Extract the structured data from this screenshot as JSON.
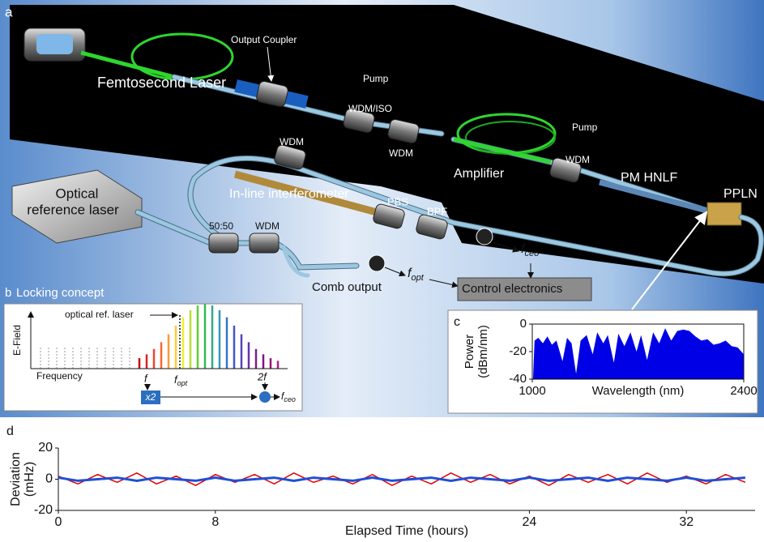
{
  "panel_a": {
    "letter": "a",
    "output_coupler": "Output Coupler",
    "femtosecond_laser": "Femtosecond Laser",
    "pump_1": "Pump",
    "wdm_iso": "WDM/ISO",
    "wdm_1": "WDM",
    "amplifier": "Amplifier",
    "pump_2": "Pump",
    "wdm_2": "WDM",
    "pm_hnlf": "PM HNLF",
    "ppln": "PPLN",
    "wdm_3": "WDM",
    "in_line_interferometer": "In-line interferometer",
    "pbs": "PBS",
    "bpf": "BPF",
    "optical_reference_laser": [
      "Optical",
      "reference laser"
    ],
    "splitter": "50:50",
    "wdm_4": "WDM",
    "comb_output": "Comb output",
    "control_electronics": "Control electronics",
    "f_opt": {
      "symbol": "f",
      "sub": "opt"
    },
    "f_ceo": {
      "symbol": "f",
      "sub": "ceo"
    }
  },
  "panel_b": {
    "letter": "b",
    "title": "Locking concept",
    "y_label": "E-Field",
    "x_label": "Frequency",
    "ref_label": "optical ref. laser",
    "f": "f",
    "f_opt": {
      "symbol": "f",
      "sub": "opt"
    },
    "two_f": "2f",
    "doubler": "x2",
    "f_ceo": {
      "symbol": "f",
      "sub": "ceo"
    }
  },
  "chart_data": [
    {
      "type": "area",
      "panel": "c",
      "ylabel": [
        "Power",
        "(dBm/nm)"
      ],
      "xlabel": "Wavelength (nm)",
      "x": [
        1005,
        1015,
        1040,
        1070,
        1100,
        1130,
        1160,
        1200,
        1230,
        1260,
        1290,
        1320,
        1360,
        1400,
        1430,
        1470,
        1500,
        1540,
        1570,
        1610,
        1650,
        1690,
        1720,
        1760,
        1800,
        1840,
        1880,
        1920,
        1960,
        2000,
        2040,
        2080,
        2120,
        2160,
        2200,
        2240,
        2280,
        2320,
        2360,
        2400
      ],
      "values": [
        -40,
        -12,
        -10,
        -14,
        -9,
        -15,
        -12,
        -27,
        -10,
        -14,
        -36,
        -12,
        -8,
        -22,
        -6,
        -14,
        -8,
        -28,
        -7,
        -16,
        -6,
        -20,
        -8,
        -26,
        -6,
        -14,
        -3,
        -12,
        -5,
        -4,
        -5,
        -9,
        -12,
        -11,
        -15,
        -14,
        -12,
        -16,
        -17,
        -22
      ],
      "color": "#0000e6",
      "xlim": [
        1000,
        2400
      ],
      "ylim": [
        -40,
        0
      ],
      "xticks": [
        1000,
        2400
      ],
      "yticks": [
        -40,
        -20,
        0
      ]
    },
    {
      "type": "line",
      "panel": "d",
      "ylabel": [
        "Deviation",
        "(mHz)"
      ],
      "xlabel": "Elapsed Time (hours)",
      "x": [
        0,
        1,
        2,
        3,
        4,
        5,
        6,
        7,
        8,
        9,
        10,
        11,
        12,
        13,
        14,
        15,
        16,
        17,
        18,
        19,
        20,
        21,
        22,
        23,
        24,
        25,
        26,
        27,
        28,
        29,
        30,
        31,
        32,
        33,
        34,
        35
      ],
      "series": [
        {
          "color": "#e00000",
          "values": [
            2,
            -3,
            3,
            -2,
            4,
            -3,
            2,
            -4,
            3,
            -2,
            3,
            -3,
            4,
            -2,
            2,
            -3,
            3,
            -4,
            2,
            -3,
            4,
            -2,
            3,
            -3,
            2,
            -4,
            3,
            -2,
            3,
            -3,
            4,
            -2,
            2,
            -3,
            3,
            -2
          ]
        },
        {
          "color": "#1f4fd8",
          "values": [
            1,
            -1,
            0,
            1,
            -1,
            1,
            0,
            -1,
            1,
            -1,
            0,
            1,
            -1,
            1,
            0,
            -1,
            1,
            -1,
            0,
            1,
            -1,
            1,
            0,
            -1,
            1,
            -1,
            0,
            1,
            -1,
            1,
            0,
            -1,
            1,
            -1,
            0,
            1
          ]
        }
      ],
      "xlim": [
        0,
        35.5
      ],
      "ylim": [
        -20,
        20
      ],
      "xticks": [
        0,
        8,
        24,
        32
      ],
      "yticks": [
        -20,
        0,
        20
      ]
    }
  ]
}
